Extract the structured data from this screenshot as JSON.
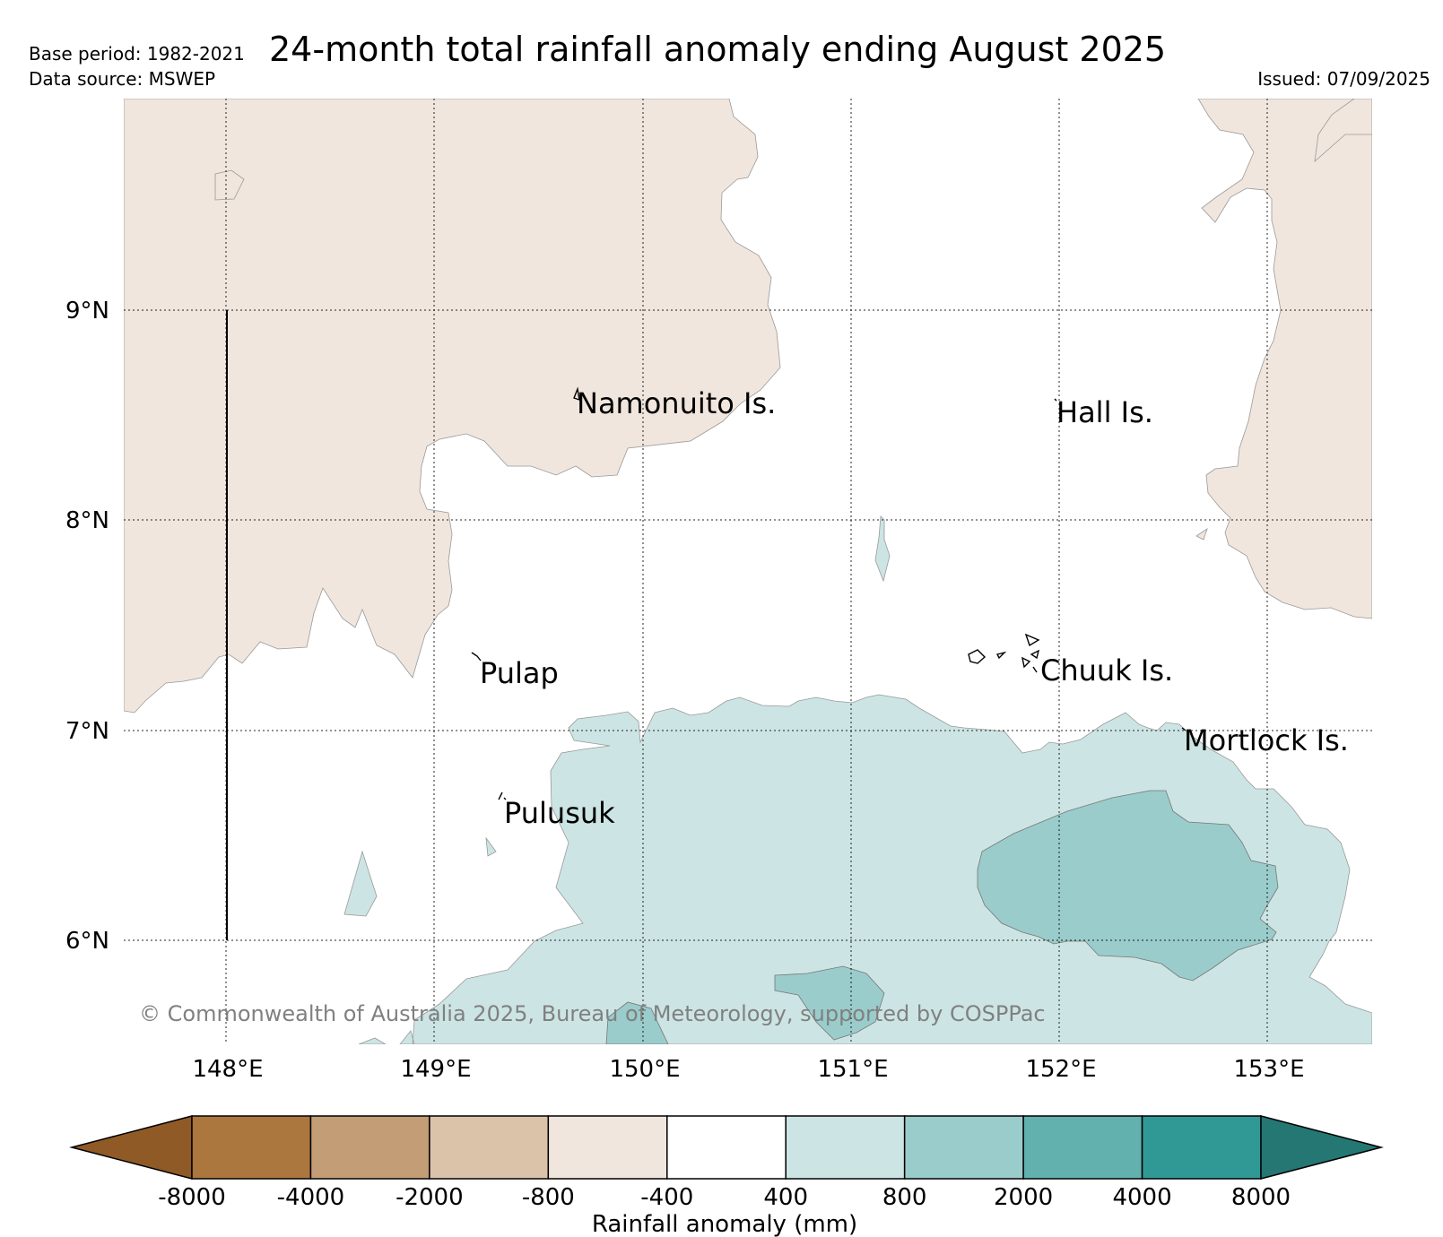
{
  "header": {
    "title": "24-month total rainfall anomaly ending August 2025",
    "base_period": "Base period: 1982-2021",
    "data_source": "Data source: MSWEP",
    "issued": "Issued: 07/09/2025"
  },
  "map": {
    "lat_labels": [
      "9°N",
      "8°N",
      "7°N",
      "6°N"
    ],
    "lon_labels": [
      "148°E",
      "149°E",
      "150°E",
      "151°E",
      "152°E",
      "153°E"
    ],
    "places": [
      "Namonuito Is.",
      "Hall Is.",
      "Pulap",
      "Chuuk Is.",
      "Mortlock Is.",
      "Pulusuk"
    ],
    "copyright": "© Commonwealth of Australia 2025, Bureau of Meteorology, supported by COSPPac"
  },
  "colorbar": {
    "label": "Rainfall anomaly (mm)",
    "ticks": [
      "-8000",
      "-4000",
      "-2000",
      "-800",
      "-400",
      "400",
      "800",
      "2000",
      "4000",
      "8000"
    ],
    "colors": [
      "#8f5a26",
      "#ac763f",
      "#c39d75",
      "#dbc3aa",
      "#f0e6dd",
      "#ffffff",
      "#cce5e4",
      "#9acccb",
      "#62b1ae",
      "#309995",
      "#247773"
    ]
  }
}
